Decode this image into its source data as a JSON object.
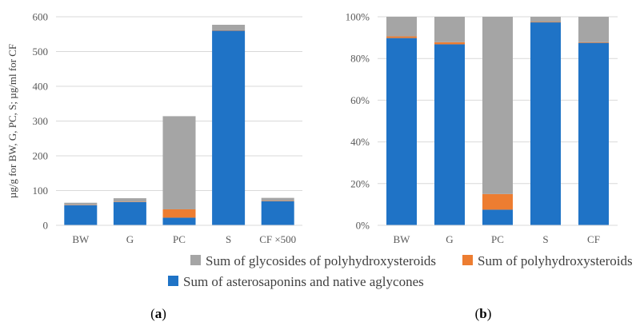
{
  "colors": {
    "glycosides": "#a5a5a5",
    "polyhydroxysteroids": "#ed7d31",
    "asterosaponins": "#1f73c6",
    "axis": "#d9d9d9",
    "grid": "#d9d9d9"
  },
  "legend": [
    {
      "key": "glycosides",
      "label": "Sum of glycosides of polyhydroxysteroids"
    },
    {
      "key": "polyhydroxysteroids",
      "label": "Sum of polyhydroxysteroids"
    },
    {
      "key": "asterosaponins",
      "label": "Sum of asterosaponins and native aglycones"
    }
  ],
  "panel_labels": {
    "a": {
      "open": "(",
      "letter": "a",
      "close": ")"
    },
    "b": {
      "open": "(",
      "letter": "b",
      "close": ")"
    }
  },
  "chart_data": [
    {
      "type": "bar",
      "stacked": true,
      "categories": [
        "BW",
        "G",
        "PC",
        "S",
        "CF ×500"
      ],
      "ylabel": "µg/g for BW, G, PC, S; µg/ml for CF",
      "ylim": [
        0,
        600
      ],
      "yticks": [
        0,
        100,
        200,
        300,
        400,
        500,
        600
      ],
      "ytick_labels": [
        "0",
        "100",
        "200",
        "300",
        "400",
        "500",
        "600"
      ],
      "grid": true,
      "series": [
        {
          "key": "asterosaponins",
          "name": "Sum of asterosaponins and native aglycones",
          "values": [
            58,
            67,
            22,
            560,
            69
          ]
        },
        {
          "key": "polyhydroxysteroids",
          "name": "Sum of polyhydroxysteroids",
          "values": [
            1,
            1,
            24,
            1,
            1
          ]
        },
        {
          "key": "glycosides",
          "name": "Sum of glycosides of polyhydroxysteroids",
          "values": [
            6,
            10,
            268,
            16,
            9
          ]
        }
      ]
    },
    {
      "type": "bar",
      "stacked": true,
      "percent": true,
      "categories": [
        "BW",
        "G",
        "PC",
        "S",
        "CF"
      ],
      "ylim": [
        0,
        100
      ],
      "yticks": [
        0,
        20,
        40,
        60,
        80,
        100
      ],
      "ytick_labels": [
        "0%",
        "20%",
        "40%",
        "60%",
        "80%",
        "100%"
      ],
      "grid": true,
      "series": [
        {
          "key": "asterosaponins",
          "name": "Sum of asterosaponins and native aglycones",
          "values": [
            89.8,
            86.8,
            7.5,
            97.3,
            87.5
          ]
        },
        {
          "key": "polyhydroxysteroids",
          "name": "Sum of polyhydroxysteroids",
          "values": [
            0.8,
            1.0,
            7.5,
            0.2,
            0.3
          ]
        },
        {
          "key": "glycosides",
          "name": "Sum of glycosides of polyhydroxysteroids",
          "values": [
            9.4,
            12.2,
            85.0,
            2.5,
            12.2
          ]
        }
      ]
    }
  ]
}
